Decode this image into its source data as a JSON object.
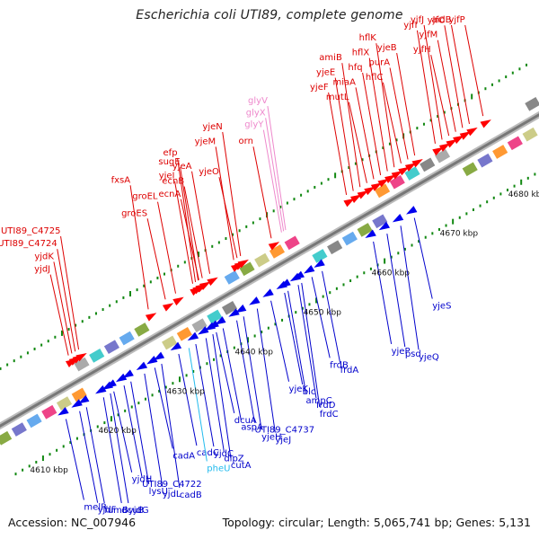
{
  "title": "Escherichia coli UTI89, complete genome",
  "footer": {
    "accession": "Accession: NC_007946",
    "summary": "Topology: circular; Length: 5,065,741 bp; Genes: 5,131"
  },
  "colors": {
    "forward_label": "#dd0000",
    "reverse_label": "#0000cc",
    "rna_label_pink": "#ee88cc",
    "rna_label_cyan": "#22bbee",
    "forward_gene": "#ff0000",
    "reverse_gene": "#0000ee",
    "backbone": "#777777",
    "tick": "#118811"
  },
  "scale_labels": [
    {
      "text": "4610 kbp",
      "kbp": 4610
    },
    {
      "text": "4620 kbp",
      "kbp": 4620
    },
    {
      "text": "4630 kbp",
      "kbp": 4630
    },
    {
      "text": "4640 kbp",
      "kbp": 4640
    },
    {
      "text": "4650 kbp",
      "kbp": 4650
    },
    {
      "text": "4660 kbp",
      "kbp": 4660
    },
    {
      "text": "4670 kbp",
      "kbp": 4670
    },
    {
      "text": "4680 kbp",
      "kbp": 4680
    }
  ],
  "forward_genes": [
    {
      "name": "yjdJ",
      "kbp": 4619.3
    },
    {
      "name": "yjdK",
      "kbp": 4619.8
    },
    {
      "name": "UTI89_C4724",
      "kbp": 4620.3
    },
    {
      "name": "UTI89_C4725",
      "kbp": 4620.8
    },
    {
      "name": "fxsA",
      "kbp": 4631.0
    },
    {
      "name": "groES",
      "kbp": 4633.5
    },
    {
      "name": "groEL",
      "kbp": 4635.0
    },
    {
      "name": "yjeI",
      "kbp": 4637.5
    },
    {
      "name": "sugE",
      "kbp": 4638.3
    },
    {
      "name": "efp",
      "kbp": 4637.9
    },
    {
      "name": "ecnA",
      "kbp": 4638.4
    },
    {
      "name": "ecnB",
      "kbp": 4638.9
    },
    {
      "name": "yjeA",
      "kbp": 4640.0
    },
    {
      "name": "yjeM",
      "kbp": 4643.5
    },
    {
      "name": "yjeN",
      "kbp": 4644.5
    },
    {
      "name": "yjeO",
      "kbp": 4644.0
    },
    {
      "name": "orn",
      "kbp": 4649.0
    },
    {
      "name": "yjeF",
      "kbp": 4660.0
    },
    {
      "name": "yjeE",
      "kbp": 4661.0
    },
    {
      "name": "amiB",
      "kbp": 4662.0
    },
    {
      "name": "mutL",
      "kbp": 4663.0
    },
    {
      "name": "miaA",
      "kbp": 4664.0
    },
    {
      "name": "hfq",
      "kbp": 4665.0
    },
    {
      "name": "hflX",
      "kbp": 4666.0
    },
    {
      "name": "hflK",
      "kbp": 4667.0
    },
    {
      "name": "hflC",
      "kbp": 4668.0
    },
    {
      "name": "purA",
      "kbp": 4669.0
    },
    {
      "name": "yjeB",
      "kbp": 4670.0
    },
    {
      "name": "yjfI",
      "kbp": 4673.0
    },
    {
      "name": "yjfJ",
      "kbp": 4674.0
    },
    {
      "name": "yjfH",
      "kbp": 4675.0
    },
    {
      "name": "yjfM",
      "kbp": 4676.0
    },
    {
      "name": "yjfC",
      "kbp": 4677.0
    },
    {
      "name": "aidB",
      "kbp": 4678.0
    },
    {
      "name": "yjfP",
      "kbp": 4680.0
    }
  ],
  "rna_forward": [
    {
      "name": "glyY",
      "kbp": 4650.5
    },
    {
      "name": "glyX",
      "kbp": 4650.8
    },
    {
      "name": "glyV",
      "kbp": 4651.1
    }
  ],
  "reverse_genes": [
    {
      "name": "melR",
      "kbp": 4615.0
    },
    {
      "name": "yjdF",
      "kbp": 4617.0
    },
    {
      "name": "fumB",
      "kbp": 4618.0
    },
    {
      "name": "dcuB",
      "kbp": 4620.5
    },
    {
      "name": "yjdG",
      "kbp": 4621.5
    },
    {
      "name": "yjdH",
      "kbp": 4622.0
    },
    {
      "name": "UTI89_C4722",
      "kbp": 4623.5
    },
    {
      "name": "lysU",
      "kbp": 4624.5
    },
    {
      "name": "yjdL",
      "kbp": 4626.5
    },
    {
      "name": "cadB",
      "kbp": 4629.0
    },
    {
      "name": "cadA",
      "kbp": 4628.0
    },
    {
      "name": "cadC",
      "kbp": 4631.5
    },
    {
      "name": "yjdC",
      "kbp": 4634.0
    },
    {
      "name": "dipZ",
      "kbp": 4635.5
    },
    {
      "name": "cutA",
      "kbp": 4636.5
    },
    {
      "name": "dcuA",
      "kbp": 4637.0
    },
    {
      "name": "aspA",
      "kbp": 4638.0
    },
    {
      "name": "UTI89_C4737",
      "kbp": 4640.0
    },
    {
      "name": "yjeH",
      "kbp": 4641.0
    },
    {
      "name": "yjeJ",
      "kbp": 4643.0
    },
    {
      "name": "yjeK",
      "kbp": 4645.0
    },
    {
      "name": "blc",
      "kbp": 4647.0
    },
    {
      "name": "ampC",
      "kbp": 4647.5
    },
    {
      "name": "frdD",
      "kbp": 4649.0
    },
    {
      "name": "frdC",
      "kbp": 4649.5
    },
    {
      "name": "frdB",
      "kbp": 4651.0
    },
    {
      "name": "frdA",
      "kbp": 4652.5
    },
    {
      "name": "yjeP",
      "kbp": 4660.0
    },
    {
      "name": "psd",
      "kbp": 4662.0
    },
    {
      "name": "yjeQ",
      "kbp": 4664.0
    },
    {
      "name": "yjeS",
      "kbp": 4666.0
    }
  ],
  "rna_reverse": [
    {
      "name": "pheU",
      "kbp": 4633.0
    }
  ]
}
